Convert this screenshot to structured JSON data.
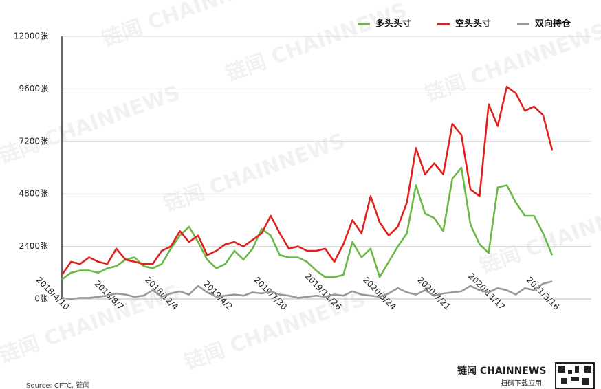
{
  "chart_data": {
    "type": "line",
    "categories": [
      "2018/4/10",
      null,
      null,
      null,
      null,
      null,
      "2018/8/7",
      null,
      null,
      null,
      null,
      null,
      "2018/12/4",
      null,
      null,
      null,
      null,
      null,
      "2019/4/2",
      null,
      null,
      null,
      null,
      null,
      "2019/7/30",
      null,
      null,
      null,
      null,
      null,
      "2019/11/26",
      null,
      null,
      null,
      null,
      null,
      "2020/3/24",
      null,
      null,
      null,
      null,
      null,
      "2020/7/21",
      null,
      null,
      null,
      null,
      null,
      "2020/11/17",
      null,
      null,
      null,
      null,
      null,
      "2021/3/16"
    ],
    "series": [
      {
        "name": "多头头寸",
        "color": "#6ab945",
        "values": [
          900,
          1200,
          1300,
          1300,
          1200,
          1400,
          1500,
          1800,
          1900,
          1500,
          1400,
          1600,
          2300,
          2900,
          3300,
          2600,
          1800,
          1400,
          1600,
          2200,
          1800,
          2300,
          3200,
          2900,
          2000,
          1900,
          1900,
          1700,
          1300,
          1000,
          1000,
          1100,
          2600,
          1900,
          2300,
          1000,
          1700,
          2400,
          3000,
          5200,
          3900,
          3700,
          3100,
          5500,
          6000,
          3400,
          2500,
          2100,
          5100,
          5200,
          4400,
          3800,
          3800,
          3000,
          2000
        ]
      },
      {
        "name": "空头头寸",
        "color": "#e0201b",
        "values": [
          1100,
          1700,
          1600,
          1900,
          1700,
          1600,
          2300,
          1800,
          1700,
          1600,
          1600,
          2200,
          2400,
          3100,
          2600,
          2900,
          2000,
          2200,
          2500,
          2600,
          2400,
          2700,
          3000,
          3800,
          3000,
          2300,
          2400,
          2200,
          2200,
          2300,
          1700,
          2500,
          3600,
          3000,
          4700,
          3500,
          2900,
          3300,
          4400,
          6900,
          5700,
          6200,
          5700,
          8000,
          7500,
          5000,
          4700,
          8900,
          7900,
          9700,
          9400,
          8600,
          8800,
          8400,
          6800
        ]
      },
      {
        "name": "双向持仓",
        "color": "#999999",
        "values": [
          50,
          0,
          50,
          50,
          100,
          150,
          250,
          200,
          100,
          150,
          400,
          100,
          250,
          350,
          200,
          600,
          300,
          100,
          150,
          200,
          150,
          300,
          250,
          350,
          200,
          150,
          50,
          100,
          150,
          100,
          200,
          150,
          350,
          200,
          150,
          100,
          250,
          500,
          300,
          200,
          400,
          150,
          250,
          300,
          350,
          600,
          400,
          300,
          500,
          400,
          200,
          500,
          400,
          700,
          800
        ]
      }
    ],
    "ylim": [
      0,
      12000
    ],
    "yticks": [
      {
        "value": 0,
        "label": "0张"
      },
      {
        "value": 2400,
        "label": "2400张"
      },
      {
        "value": 4800,
        "label": "4800张"
      },
      {
        "value": 7200,
        "label": "7200张"
      },
      {
        "value": 9600,
        "label": "9600张"
      },
      {
        "value": 12000,
        "label": "12000张"
      }
    ],
    "grid": true,
    "legend": "top-right",
    "watermark": "链闻 CHAINNEWS",
    "source": "Source: CFTC, 链闻",
    "brand": "链闻 CHAINNEWS",
    "brand_sub": "扫码下载应用"
  }
}
